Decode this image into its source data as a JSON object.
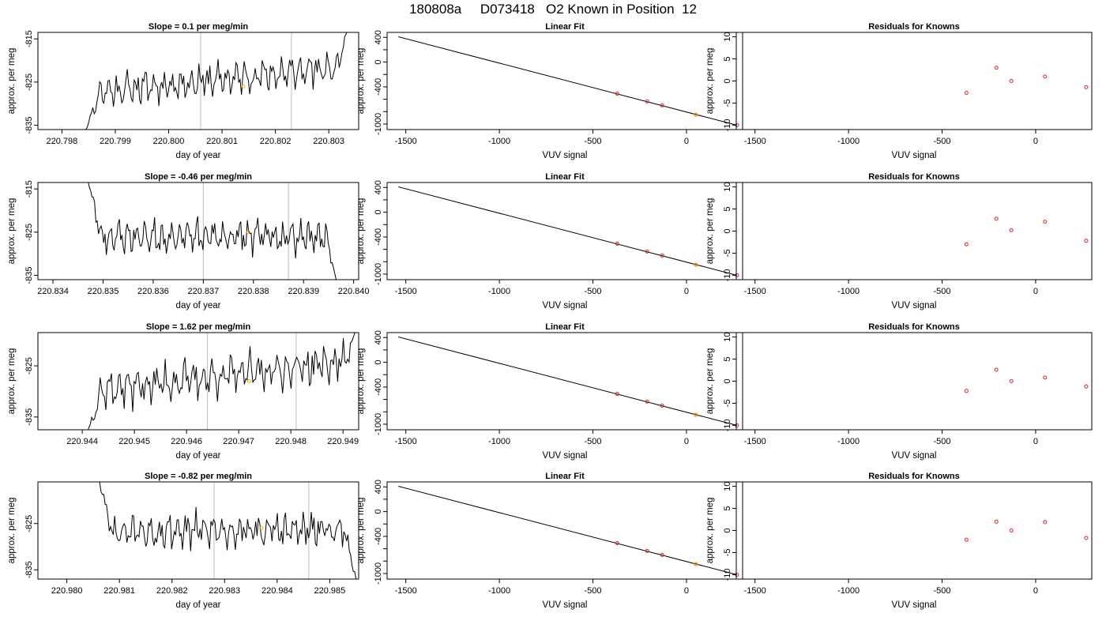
{
  "page": {
    "title": "180808a     D073418   O2 Known in Position  12"
  },
  "style": {
    "trace_color": "#000000",
    "known_marker_color": "#d62728",
    "sample_marker_color": "#ffa500",
    "vertical_line_color": "#c8c8c8"
  },
  "chart_data": [
    {
      "type": "line",
      "row": 1,
      "title": "Slope =  0.1  per meg/min",
      "xlabel": "day of year",
      "ylabel": "approx. per meg",
      "xlim": [
        220.79755,
        220.80356
      ],
      "ylim": [
        -836,
        -813.5
      ],
      "x_ticks": [
        220.798,
        220.799,
        220.8,
        220.801,
        220.802,
        220.803
      ],
      "x_tick_labels": [
        "220.798",
        "220.799",
        "220.800",
        "220.801",
        "220.802",
        "220.803"
      ],
      "y_ticks": [
        -835,
        -825,
        -815
      ],
      "y_tick_labels": [
        "-835",
        "-825",
        "-815"
      ],
      "vlines": [
        220.8006,
        220.8023
      ],
      "trace_start": 220.79845,
      "trace_end": 220.80335,
      "start_value": -836,
      "end_value": -813,
      "base_value": -827.5,
      "trend": 6.0,
      "seed": 11,
      "sample_point": {
        "x": 220.8014,
        "y": -826
      }
    },
    {
      "type": "line",
      "row": 2,
      "title": "Slope =  -0.46  per meg/min",
      "xlabel": "day of year",
      "ylabel": "approx. per meg",
      "xlim": [
        220.8337,
        220.8401
      ],
      "ylim": [
        -836,
        -813.5
      ],
      "x_ticks": [
        220.834,
        220.835,
        220.836,
        220.837,
        220.838,
        220.839,
        220.84
      ],
      "x_tick_labels": [
        "220.834",
        "220.835",
        "220.836",
        "220.837",
        "220.838",
        "220.839",
        "220.840"
      ],
      "y_ticks": [
        -835,
        -825,
        -815
      ],
      "y_tick_labels": [
        "-835",
        "-825",
        "-815"
      ],
      "vlines": [
        220.837,
        220.8387
      ],
      "trace_start": 220.8347,
      "trace_end": 220.83965,
      "start_value": -813,
      "end_value": -836,
      "base_value": -826,
      "trend": 0.0,
      "seed": 23,
      "sample_point": {
        "x": 220.8379,
        "y": -825
      }
    },
    {
      "type": "line",
      "row": 3,
      "title": "Slope =  1.62  per meg/min",
      "xlabel": "day of year",
      "ylabel": "approx. per meg",
      "xlim": [
        220.94315,
        220.9493
      ],
      "ylim": [
        -837.5,
        -818.5
      ],
      "x_ticks": [
        220.944,
        220.945,
        220.946,
        220.947,
        220.948,
        220.949
      ],
      "x_tick_labels": [
        "220.944",
        "220.945",
        "220.946",
        "220.947",
        "220.948",
        "220.949"
      ],
      "y_ticks": [
        -835,
        -825
      ],
      "y_tick_labels": [
        "-835",
        "-825"
      ],
      "vlines": [
        220.9464,
        220.9481
      ],
      "trace_start": 220.9441,
      "trace_end": 220.94925,
      "start_value": -838,
      "end_value": -818,
      "base_value": -830,
      "trend": 6.0,
      "seed": 37,
      "sample_point": {
        "x": 220.9472,
        "y": -828
      }
    },
    {
      "type": "line",
      "row": 4,
      "title": "Slope =  -0.82  per meg/min",
      "xlabel": "day of year",
      "ylabel": "approx. per meg",
      "xlim": [
        220.97945,
        220.98555
      ],
      "ylim": [
        -837,
        -816
      ],
      "x_ticks": [
        220.98,
        220.981,
        220.982,
        220.983,
        220.984,
        220.985
      ],
      "x_tick_labels": [
        "220.980",
        "220.981",
        "220.982",
        "220.983",
        "220.984",
        "220.985"
      ],
      "y_ticks": [
        -835,
        -825
      ],
      "y_tick_labels": [
        "-835",
        "-825"
      ],
      "vlines": [
        220.9828,
        220.9846
      ],
      "trace_start": 220.9806,
      "trace_end": 220.9855,
      "start_value": -815,
      "end_value": -837,
      "base_value": -826.5,
      "trend": 0.0,
      "seed": 53,
      "sample_point": {
        "x": 220.9837,
        "y": -826
      }
    },
    {
      "type": "scatter",
      "row": 1,
      "title": "Linear Fit",
      "xlabel": "VUV signal",
      "ylabel": "approx. per meg",
      "xlim": [
        -1600,
        300
      ],
      "ylim": [
        -1090,
        480
      ],
      "x_ticks": [
        -1500,
        -1000,
        -500,
        0
      ],
      "x_tick_labels": [
        "-1500",
        "-1000",
        "-500",
        "0"
      ],
      "y_ticks": [
        400,
        0,
        -400,
        -1000
      ],
      "y_tick_labels": [
        "400",
        "0",
        "-400",
        "-1000"
      ],
      "y_minor_ticks": [
        200,
        -200,
        -600,
        -800
      ],
      "fit_line": {
        "x": [
          -1540,
          270
        ],
        "y": [
          410,
          -1020
        ]
      },
      "knowns": [
        {
          "x": -370,
          "y": -510
        },
        {
          "x": -210,
          "y": -635
        },
        {
          "x": -130,
          "y": -700
        },
        {
          "x": 50,
          "y": -850
        },
        {
          "x": 270,
          "y": -1020
        }
      ],
      "sample": {
        "x": 50,
        "y": -850
      }
    },
    {
      "type": "scatter",
      "row": 2,
      "title": "Linear Fit",
      "xlabel": "VUV signal",
      "ylabel": "approx. per meg",
      "xlim": [
        -1600,
        300
      ],
      "ylim": [
        -1090,
        480
      ],
      "x_ticks": [
        -1500,
        -1000,
        -500,
        0
      ],
      "x_tick_labels": [
        "-1500",
        "-1000",
        "-500",
        "0"
      ],
      "y_ticks": [
        400,
        0,
        -400,
        -1000
      ],
      "y_tick_labels": [
        "400",
        "0",
        "-400",
        "-1000"
      ],
      "y_minor_ticks": [
        200,
        -200,
        -600,
        -800
      ],
      "fit_line": {
        "x": [
          -1540,
          270
        ],
        "y": [
          410,
          -1020
        ]
      },
      "knowns": [
        {
          "x": -370,
          "y": -510
        },
        {
          "x": -210,
          "y": -635
        },
        {
          "x": -130,
          "y": -700
        },
        {
          "x": 50,
          "y": -850
        },
        {
          "x": 270,
          "y": -1020
        }
      ],
      "sample": {
        "x": 50,
        "y": -850
      }
    },
    {
      "type": "scatter",
      "row": 3,
      "title": "Linear Fit",
      "xlabel": "VUV signal",
      "ylabel": "approx. per meg",
      "xlim": [
        -1600,
        300
      ],
      "ylim": [
        -1090,
        480
      ],
      "x_ticks": [
        -1500,
        -1000,
        -500,
        0
      ],
      "x_tick_labels": [
        "-1500",
        "-1000",
        "-500",
        "0"
      ],
      "y_ticks": [
        400,
        0,
        -400,
        -1000
      ],
      "y_tick_labels": [
        "400",
        "0",
        "-400",
        "-1000"
      ],
      "y_minor_ticks": [
        200,
        -200,
        -600,
        -800
      ],
      "fit_line": {
        "x": [
          -1540,
          270
        ],
        "y": [
          410,
          -1020
        ]
      },
      "knowns": [
        {
          "x": -370,
          "y": -510
        },
        {
          "x": -210,
          "y": -635
        },
        {
          "x": -130,
          "y": -700
        },
        {
          "x": 50,
          "y": -850
        },
        {
          "x": 270,
          "y": -1020
        }
      ],
      "sample": {
        "x": 50,
        "y": -850
      }
    },
    {
      "type": "scatter",
      "row": 4,
      "title": "Linear Fit",
      "xlabel": "VUV signal",
      "ylabel": "approx. per meg",
      "xlim": [
        -1600,
        300
      ],
      "ylim": [
        -1090,
        480
      ],
      "x_ticks": [
        -1500,
        -1000,
        -500,
        0
      ],
      "x_tick_labels": [
        "-1500",
        "-1000",
        "-500",
        "0"
      ],
      "y_ticks": [
        400,
        0,
        -400,
        -1000
      ],
      "y_tick_labels": [
        "400",
        "0",
        "-400",
        "-1000"
      ],
      "y_minor_ticks": [
        200,
        -200,
        -600,
        -800
      ],
      "fit_line": {
        "x": [
          -1540,
          270
        ],
        "y": [
          410,
          -1020
        ]
      },
      "knowns": [
        {
          "x": -370,
          "y": -510
        },
        {
          "x": -210,
          "y": -635
        },
        {
          "x": -130,
          "y": -700
        },
        {
          "x": 50,
          "y": -850
        },
        {
          "x": 270,
          "y": -1020
        }
      ],
      "sample": {
        "x": 50,
        "y": -850
      }
    },
    {
      "type": "scatter",
      "row": 1,
      "title": "Residuals for Knowns",
      "xlabel": "VUV signal",
      "ylabel": "approx. per meg",
      "xlim": [
        -1600,
        300
      ],
      "ylim": [
        -11,
        11
      ],
      "x_ticks": [
        -1500,
        -1000,
        -500,
        0
      ],
      "x_tick_labels": [
        "-1500",
        "-1000",
        "-500",
        "0"
      ],
      "y_ticks": [
        10,
        5,
        0,
        -5,
        -10
      ],
      "y_tick_labels": [
        "10",
        "5",
        "0",
        "-5",
        "-10"
      ],
      "points": [
        {
          "x": -370,
          "y": -2.7
        },
        {
          "x": -210,
          "y": 3.0
        },
        {
          "x": -130,
          "y": 0
        },
        {
          "x": 50,
          "y": 1.0
        },
        {
          "x": 270,
          "y": -1.4
        }
      ]
    },
    {
      "type": "scatter",
      "row": 2,
      "title": "Residuals for Knowns",
      "xlabel": "VUV signal",
      "ylabel": "approx. per meg",
      "xlim": [
        -1600,
        300
      ],
      "ylim": [
        -11,
        11
      ],
      "x_ticks": [
        -1500,
        -1000,
        -500,
        0
      ],
      "x_tick_labels": [
        "-1500",
        "-1000",
        "-500",
        "0"
      ],
      "y_ticks": [
        10,
        5,
        0,
        -5,
        -10
      ],
      "y_tick_labels": [
        "10",
        "5",
        "0",
        "-5",
        "-10"
      ],
      "points": [
        {
          "x": -370,
          "y": -3.0
        },
        {
          "x": -210,
          "y": 2.8
        },
        {
          "x": -130,
          "y": 0.2
        },
        {
          "x": 50,
          "y": 2.1
        },
        {
          "x": 270,
          "y": -2.2
        }
      ]
    },
    {
      "type": "scatter",
      "row": 3,
      "title": "Residuals for Knowns",
      "xlabel": "VUV signal",
      "ylabel": "approx. per meg",
      "xlim": [
        -1600,
        300
      ],
      "ylim": [
        -11,
        11
      ],
      "x_ticks": [
        -1500,
        -1000,
        -500,
        0
      ],
      "x_tick_labels": [
        "-1500",
        "-1000",
        "-500",
        "0"
      ],
      "y_ticks": [
        10,
        5,
        0,
        -5,
        -10
      ],
      "y_tick_labels": [
        "10",
        "5",
        "0",
        "-5",
        "-10"
      ],
      "points": [
        {
          "x": -370,
          "y": -2.2
        },
        {
          "x": -210,
          "y": 2.6
        },
        {
          "x": -130,
          "y": 0
        },
        {
          "x": 50,
          "y": 0.8
        },
        {
          "x": 270,
          "y": -1.2
        }
      ]
    },
    {
      "type": "scatter",
      "row": 4,
      "title": "Residuals for Knowns",
      "xlabel": "VUV signal",
      "ylabel": "approx. per meg",
      "xlim": [
        -1600,
        300
      ],
      "ylim": [
        -11,
        11
      ],
      "x_ticks": [
        -1500,
        -1000,
        -500,
        0
      ],
      "x_tick_labels": [
        "-1500",
        "-1000",
        "-500",
        "0"
      ],
      "y_ticks": [
        10,
        5,
        0,
        -5,
        -10
      ],
      "y_tick_labels": [
        "10",
        "5",
        "0",
        "-5",
        "-10"
      ],
      "points": [
        {
          "x": -370,
          "y": -2.1
        },
        {
          "x": -210,
          "y": 2.0
        },
        {
          "x": -130,
          "y": 0
        },
        {
          "x": 50,
          "y": 1.9
        },
        {
          "x": 270,
          "y": -1.7
        }
      ]
    }
  ]
}
